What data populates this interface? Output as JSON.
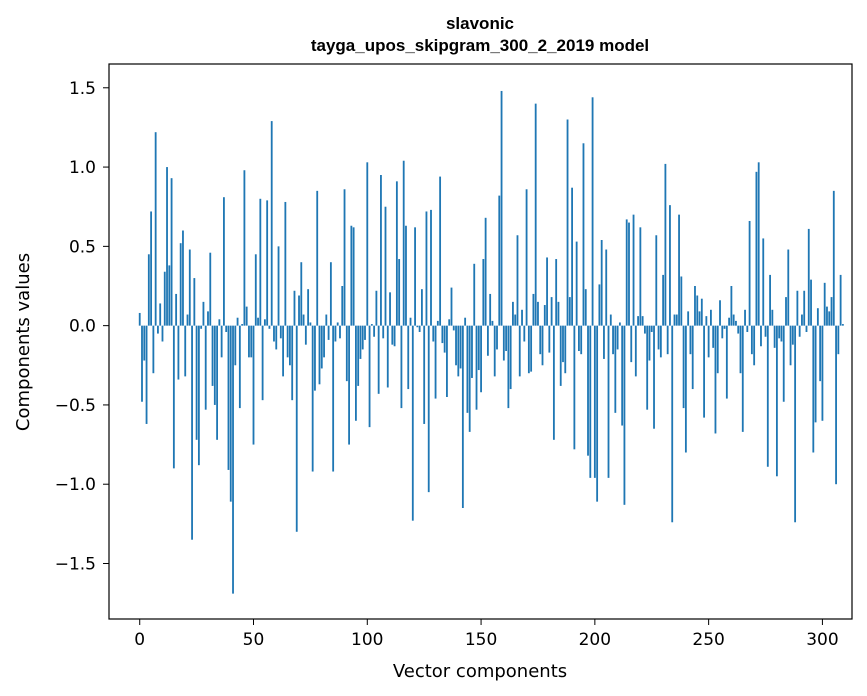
{
  "chart_data": {
    "type": "bar",
    "title_lines": [
      "slavonic",
      "tayga_upos_skipgram_300_2_2019 model"
    ],
    "xlabel": "Vector components",
    "ylabel": "Components values",
    "xlim": [
      -13.5,
      313
    ],
    "ylim": [
      -1.85,
      1.65
    ],
    "xticks": [
      0,
      50,
      100,
      150,
      200,
      250,
      300
    ],
    "xtick_labels": [
      "0",
      "50",
      "100",
      "150",
      "200",
      "250",
      "300"
    ],
    "yticks": [
      -1.5,
      -1.0,
      -0.5,
      0.0,
      0.5,
      1.0,
      1.5
    ],
    "ytick_labels": [
      "−1.5",
      "−1.0",
      "−0.5",
      "0.0",
      "0.5",
      "1.0",
      "1.5"
    ],
    "bar_color": "#1f77b4",
    "grid": false,
    "values": [
      0.08,
      -0.48,
      -0.22,
      -0.62,
      0.45,
      0.72,
      -0.3,
      1.22,
      -0.05,
      0.14,
      -0.1,
      0.34,
      1.0,
      0.38,
      0.93,
      -0.9,
      0.2,
      -0.34,
      0.52,
      0.6,
      -0.32,
      0.07,
      0.48,
      -1.35,
      0.3,
      -0.72,
      -0.88,
      -0.02,
      0.15,
      -0.53,
      0.09,
      0.46,
      -0.38,
      -0.5,
      -0.72,
      0.04,
      -0.2,
      0.81,
      -0.04,
      -0.91,
      -1.11,
      -1.69,
      -0.25,
      0.05,
      -0.52,
      0.01,
      0.98,
      0.12,
      -0.2,
      -0.2,
      -0.75,
      0.45,
      0.05,
      0.8,
      -0.47,
      0.04,
      0.79,
      -0.02,
      1.29,
      -0.1,
      -0.15,
      0.5,
      -0.08,
      -0.32,
      0.78,
      -0.2,
      -0.25,
      -0.47,
      0.22,
      -1.3,
      0.19,
      0.4,
      0.07,
      -0.12,
      0.23,
      0.02,
      -0.92,
      -0.41,
      0.85,
      -0.37,
      -0.27,
      -0.2,
      0.07,
      -0.09,
      0.4,
      -0.92,
      -0.1,
      0.02,
      -0.08,
      0.25,
      0.86,
      -0.35,
      -0.75,
      0.63,
      0.62,
      -0.6,
      -0.38,
      -0.21,
      -0.15,
      -0.09,
      1.03,
      -0.64,
      0.01,
      -0.07,
      0.22,
      -0.43,
      0.95,
      -0.08,
      0.75,
      -0.39,
      0.21,
      -0.12,
      -0.13,
      0.91,
      0.42,
      -0.52,
      1.04,
      0.63,
      -0.4,
      0.05,
      -1.23,
      0.62,
      -0.01,
      -0.04,
      0.23,
      -0.62,
      0.72,
      -1.05,
      0.73,
      -0.1,
      -0.46,
      0.03,
      0.94,
      -0.11,
      -0.17,
      -0.45,
      0.04,
      0.24,
      -0.03,
      -0.25,
      -0.32,
      -0.27,
      -1.15,
      0.05,
      -0.55,
      -0.67,
      -0.33,
      0.39,
      -0.53,
      -0.28,
      -0.42,
      0.42,
      0.68,
      -0.19,
      0.2,
      0.03,
      -0.32,
      -0.15,
      0.82,
      1.48,
      -0.22,
      -0.16,
      -0.52,
      -0.4,
      0.15,
      0.07,
      0.57,
      -0.32,
      0.1,
      -0.1,
      0.86,
      -0.3,
      -0.29,
      0.2,
      1.4,
      0.15,
      -0.18,
      -0.25,
      0.13,
      0.43,
      -0.17,
      0.18,
      -0.72,
      0.42,
      0.15,
      -0.38,
      -0.23,
      -0.3,
      1.3,
      0.18,
      0.87,
      -0.78,
      0.53,
      -0.16,
      -0.18,
      1.15,
      0.23,
      -0.82,
      -0.96,
      1.44,
      -0.96,
      -1.11,
      0.26,
      0.54,
      -0.21,
      0.48,
      -0.96,
      0.07,
      -0.18,
      -0.55,
      -0.15,
      0.02,
      -0.63,
      -1.13,
      0.67,
      0.65,
      -0.23,
      0.7,
      -0.32,
      0.06,
      0.62,
      0.06,
      -0.05,
      -0.53,
      -0.22,
      -0.04,
      -0.65,
      0.57,
      -0.15,
      -0.2,
      0.32,
      1.02,
      -0.18,
      0.76,
      -1.24,
      0.07,
      0.07,
      0.7,
      0.31,
      -0.52,
      -0.8,
      0.09,
      -0.18,
      -0.4,
      0.25,
      0.19,
      0.09,
      0.17,
      -0.58,
      0.06,
      -0.2,
      0.1,
      -0.14,
      -0.68,
      -0.3,
      0.16,
      -0.08,
      -0.02,
      -0.46,
      0.05,
      0.25,
      0.07,
      0.03,
      -0.05,
      -0.3,
      -0.67,
      0.1,
      -0.04,
      0.66,
      -0.18,
      -0.25,
      0.97,
      1.03,
      -0.13,
      0.55,
      -0.07,
      -0.89,
      0.32,
      0.1,
      -0.14,
      -0.95,
      -0.08,
      -0.1,
      -0.48,
      0.18,
      0.48,
      -0.25,
      -0.12,
      -1.24,
      0.22,
      -0.07,
      0.07,
      0.22,
      -0.04,
      0.61,
      0.29,
      -0.8,
      -0.61,
      0.11,
      -0.35,
      -0.6,
      0.27,
      0.12,
      0.09,
      0.18,
      0.85,
      -1.0,
      -0.18,
      0.32,
      0.01
    ]
  }
}
